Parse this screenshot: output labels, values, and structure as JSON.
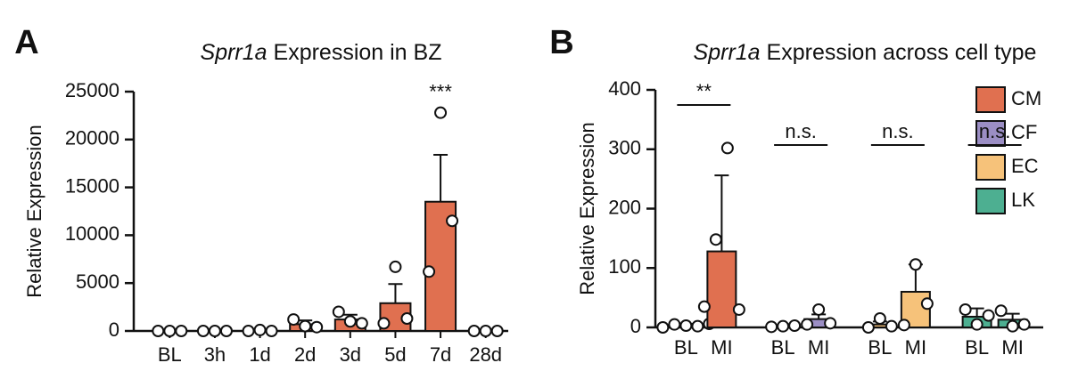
{
  "chart_data": [
    {
      "type": "bar",
      "panel": "A",
      "title_italic": "Sprr1a",
      "title": "Expression in BZ",
      "ylabel": "Relative Expression",
      "categories": [
        "BL",
        "3h",
        "1d",
        "2d",
        "3d",
        "5d",
        "7d",
        "28d"
      ],
      "values": [
        0,
        0,
        50,
        700,
        1200,
        2900,
        13500,
        0
      ],
      "errors": [
        0,
        0,
        50,
        400,
        500,
        2000,
        4900,
        0
      ],
      "points": [
        [
          0,
          0,
          0
        ],
        [
          0,
          0,
          0
        ],
        [
          0,
          100,
          0
        ],
        [
          1200,
          500,
          400
        ],
        [
          2000,
          1000,
          800
        ],
        [
          800,
          6700,
          1300
        ],
        [
          6200,
          22800,
          11500
        ],
        [
          0,
          0,
          0
        ]
      ],
      "value_annotations": [
        null,
        null,
        null,
        null,
        null,
        null,
        "***",
        null
      ],
      "color": "#e07050",
      "ylim": [
        0,
        25000
      ],
      "yticks": [
        0,
        5000,
        10000,
        15000,
        20000,
        25000
      ]
    },
    {
      "type": "grouped_bar",
      "panel": "B",
      "title_italic": "Sprr1a",
      "title": "Expression across cell type",
      "ylabel": "Relative Expression",
      "legend": "top-right",
      "groups": [
        {
          "name": "CM",
          "color": "#e07050",
          "categories": [
            "BL",
            "MI"
          ],
          "values": [
            3,
            128
          ],
          "errors": [
            3,
            128
          ],
          "points": [
            [
              0,
              5,
              3,
              2,
              6
            ],
            [
              35,
              148,
              302,
              30
            ]
          ],
          "annotation": "**"
        },
        {
          "name": "CF",
          "color": "#9b8ec4",
          "categories": [
            "BL",
            "MI"
          ],
          "values": [
            2,
            14
          ],
          "errors": [
            1,
            8
          ],
          "points": [
            [
              1,
              2,
              3
            ],
            [
              5,
              30,
              7
            ]
          ],
          "annotation": "n.s."
        },
        {
          "name": "EC",
          "color": "#f6c27a",
          "categories": [
            "BL",
            "MI"
          ],
          "values": [
            5,
            60
          ],
          "errors": [
            5,
            46
          ],
          "points": [
            [
              0,
              15,
              2
            ],
            [
              4,
              106,
              40
            ]
          ],
          "annotation": "n.s."
        },
        {
          "name": "LK",
          "color": "#4daf91",
          "categories": [
            "BL",
            "MI"
          ],
          "values": [
            18,
            13
          ],
          "errors": [
            14,
            10
          ],
          "points": [
            [
              30,
              5,
              20
            ],
            [
              28,
              2,
              5
            ]
          ],
          "annotation": "n.s."
        }
      ],
      "ylim": [
        0,
        400
      ],
      "yticks": [
        0,
        100,
        200,
        300,
        400
      ]
    }
  ]
}
